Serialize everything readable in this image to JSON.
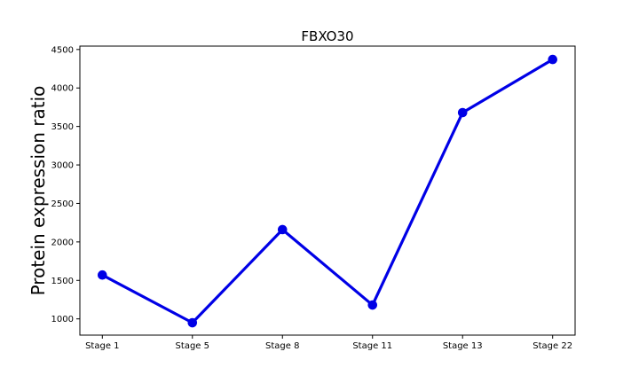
{
  "chart_data": {
    "type": "line",
    "title": "FBXO30",
    "xlabel": "",
    "ylabel": "Protein expression ratio",
    "categories": [
      "Stage 1",
      "Stage 5",
      "Stage 8",
      "Stage 11",
      "Stage 13",
      "Stage 22"
    ],
    "series": [
      {
        "values": [
          1570,
          950,
          2160,
          1180,
          3680,
          4370
        ]
      }
    ],
    "ylim": [
      789,
      4544
    ],
    "yticks": [
      1000,
      1500,
      2000,
      2500,
      3000,
      3500,
      4000,
      4500
    ],
    "grid": false,
    "legend": "none",
    "colors": {
      "line": "#0000e6",
      "marker": "#0000e6",
      "axes": "#000000"
    }
  }
}
